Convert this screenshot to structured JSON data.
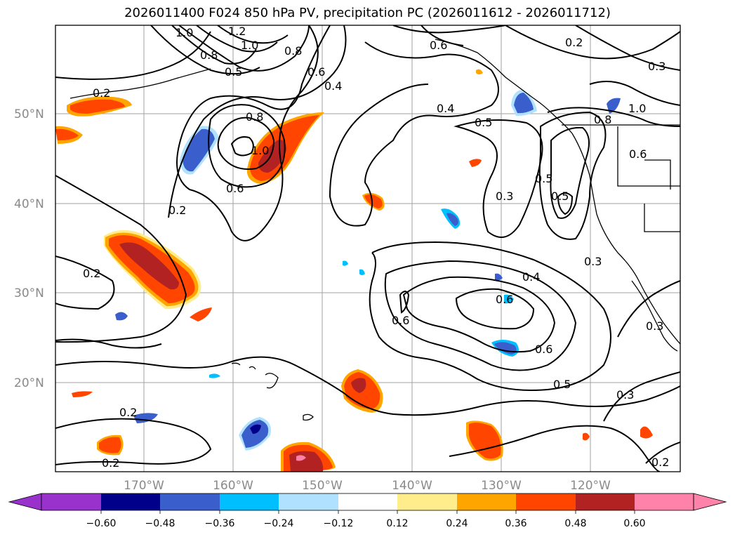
{
  "title": "2026011400 F024 850 hPa PV, precipitation PC (2026011612 - 2026011712)",
  "map": {
    "lat_labels": [
      "50°N",
      "40°N",
      "30°N",
      "20°N"
    ],
    "lon_labels": [
      "170°W",
      "160°W",
      "150°W",
      "140°W",
      "130°W",
      "120°W"
    ],
    "contour_labels": [
      "0.2",
      "0.3",
      "0.4",
      "0.5",
      "0.6",
      "0.8",
      "1.0",
      "1.2",
      "0.6",
      "0.4",
      "0.5",
      "0.2",
      "0.3",
      "0.2",
      "0.6",
      "0.4",
      "0.5",
      "0.6",
      "0.3",
      "0.3",
      "0.2",
      "0.2",
      "0.2",
      "0.8",
      "1.0",
      "0.6",
      "0.5",
      "0.3",
      "0.5"
    ],
    "gridline_color": "#a0a0a0"
  },
  "colorbar": {
    "ticks": [
      "−0.60",
      "−0.48",
      "−0.36",
      "−0.24",
      "−0.12",
      "0.12",
      "0.24",
      "0.36",
      "0.48",
      "0.60"
    ],
    "colors": [
      "#9932cc",
      "#00008b",
      "#3a5fcd",
      "#00bfff",
      "#b0e2ff",
      "#ffffff",
      "#ffec8b",
      "#ffa500",
      "#ff4500",
      "#b22222",
      "#ff82ab"
    ]
  }
}
